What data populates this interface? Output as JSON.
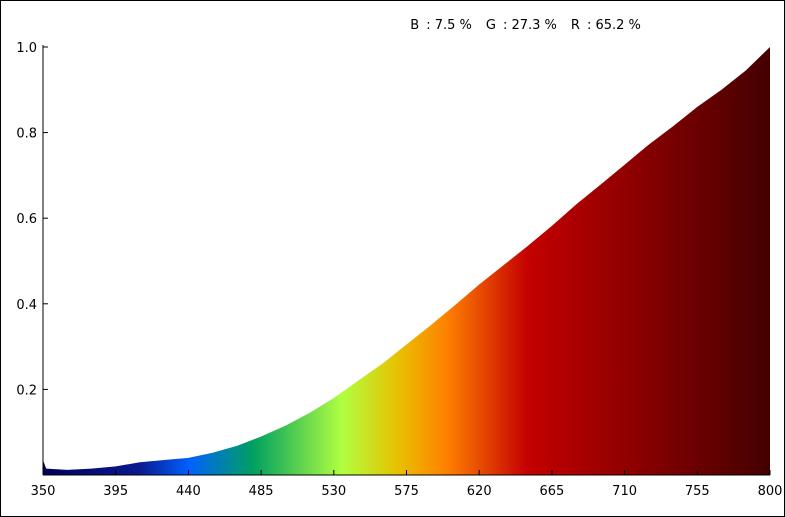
{
  "header": {
    "title": "",
    "stats": [
      {
        "label": "B",
        "value": "7.5 %"
      },
      {
        "label": "G",
        "value": "27.3 %"
      },
      {
        "label": "R",
        "value": "65.2 %"
      }
    ]
  },
  "chart_data": {
    "type": "area",
    "title": "",
    "xlabel": "",
    "ylabel": "",
    "xlim": [
      350,
      800
    ],
    "ylim": [
      0,
      1.0
    ],
    "grid": false,
    "x_ticks": [
      350,
      395,
      440,
      485,
      530,
      575,
      620,
      665,
      710,
      755,
      800
    ],
    "y_ticks": [
      0.2,
      0.4,
      0.6,
      0.8,
      1.0
    ],
    "y_tick_labels": [
      "0.2",
      "0.4",
      "0.6",
      "0.8",
      "1.0"
    ],
    "series": [
      {
        "x": [
          350,
          352,
          365,
          380,
          395,
          410,
          425,
          440,
          455,
          470,
          485,
          500,
          515,
          530,
          545,
          560,
          575,
          590,
          605,
          620,
          635,
          650,
          665,
          680,
          695,
          710,
          725,
          740,
          755,
          770,
          785,
          800
        ],
        "y": [
          0.035,
          0.015,
          0.012,
          0.015,
          0.02,
          0.03,
          0.035,
          0.04,
          0.052,
          0.068,
          0.09,
          0.115,
          0.145,
          0.18,
          0.22,
          0.26,
          0.305,
          0.35,
          0.397,
          0.445,
          0.49,
          0.535,
          0.582,
          0.632,
          0.678,
          0.725,
          0.772,
          0.815,
          0.86,
          0.9,
          0.945,
          1.0
        ]
      }
    ],
    "fill_gradient_colors": [
      {
        "wavelength": 350,
        "color": "#00005a"
      },
      {
        "wavelength": 410,
        "color": "#0a1a90"
      },
      {
        "wavelength": 440,
        "color": "#0060ff"
      },
      {
        "wavelength": 480,
        "color": "#00a060"
      },
      {
        "wavelength": 535,
        "color": "#b0ff40"
      },
      {
        "wavelength": 570,
        "color": "#e8c000"
      },
      {
        "wavelength": 600,
        "color": "#ff8000"
      },
      {
        "wavelength": 650,
        "color": "#c40000"
      },
      {
        "wavelength": 700,
        "color": "#9a0000"
      },
      {
        "wavelength": 800,
        "color": "#440000"
      }
    ]
  }
}
